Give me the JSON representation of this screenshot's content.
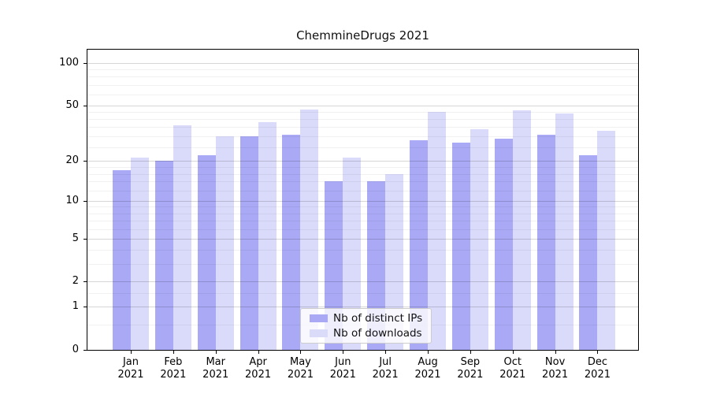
{
  "chart_data": {
    "type": "bar",
    "title": "ChemmineDrugs 2021",
    "categories": [
      "Jan",
      "Feb",
      "Mar",
      "Apr",
      "May",
      "Jun",
      "Jul",
      "Aug",
      "Sep",
      "Oct",
      "Nov",
      "Dec"
    ],
    "category_year": "2021",
    "series": [
      {
        "name": "Nb of distinct IPs",
        "color": "#a9a9f6",
        "values": [
          17,
          20,
          22,
          30,
          31,
          14,
          14,
          28,
          27,
          29,
          31,
          22
        ]
      },
      {
        "name": "Nb of downloads",
        "color": "#dadaf9",
        "values": [
          21,
          36,
          30,
          38,
          47,
          21,
          16,
          45,
          34,
          46,
          44,
          33
        ]
      }
    ],
    "yscale": "log10(1+y)",
    "ylim": [
      0,
      124
    ],
    "yticks": [
      0,
      1,
      2,
      5,
      10,
      20,
      50,
      100
    ],
    "minor_yticks": [
      0.5,
      1.5,
      3,
      4,
      6,
      7,
      8,
      9,
      12,
      14,
      16,
      18,
      25,
      30,
      35,
      40,
      45,
      60,
      70,
      80,
      90
    ],
    "grid": "horizontal",
    "legend_position": "lower center",
    "background_color": "#ffffff",
    "grid_major_color": "#d6d6d6",
    "grid_minor_color": "#efefef"
  }
}
